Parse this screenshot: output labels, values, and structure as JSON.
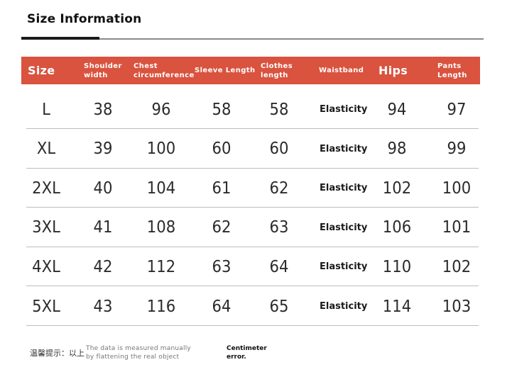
{
  "title": "Size Information",
  "colors": {
    "header_bg": "#d9533f",
    "header_text": "#ffffff",
    "row_rule": "#bdbdbd",
    "title_rule": "#1a1a1a"
  },
  "columns": [
    "Size",
    "Shoulder width",
    "Chest circumference",
    "Sleeve Length",
    "Clothes length",
    "Waistband",
    "Hips",
    "Pants Length"
  ],
  "rows": [
    {
      "size": "L",
      "shoulder": "38",
      "chest": "96",
      "sleeve": "58",
      "clothes": "58",
      "waistband": "Elasticity",
      "hips": "94",
      "pants": "97"
    },
    {
      "size": "XL",
      "shoulder": "39",
      "chest": "100",
      "sleeve": "60",
      "clothes": "60",
      "waistband": "Elasticity",
      "hips": "98",
      "pants": "99"
    },
    {
      "size": "2XL",
      "shoulder": "40",
      "chest": "104",
      "sleeve": "61",
      "clothes": "62",
      "waistband": "Elasticity",
      "hips": "102",
      "pants": "100"
    },
    {
      "size": "3XL",
      "shoulder": "41",
      "chest": "108",
      "sleeve": "62",
      "clothes": "63",
      "waistband": "Elasticity",
      "hips": "106",
      "pants": "101"
    },
    {
      "size": "4XL",
      "shoulder": "42",
      "chest": "112",
      "sleeve": "63",
      "clothes": "64",
      "waistband": "Elasticity",
      "hips": "110",
      "pants": "102"
    },
    {
      "size": "5XL",
      "shoulder": "43",
      "chest": "116",
      "sleeve": "64",
      "clothes": "65",
      "waistband": "Elasticity",
      "hips": "114",
      "pants": "103"
    }
  ],
  "footer": {
    "tip_label": "温馨提示：以上",
    "note": "The data is measured manually by flattening the real object",
    "unit_note": "Centimeter error."
  }
}
